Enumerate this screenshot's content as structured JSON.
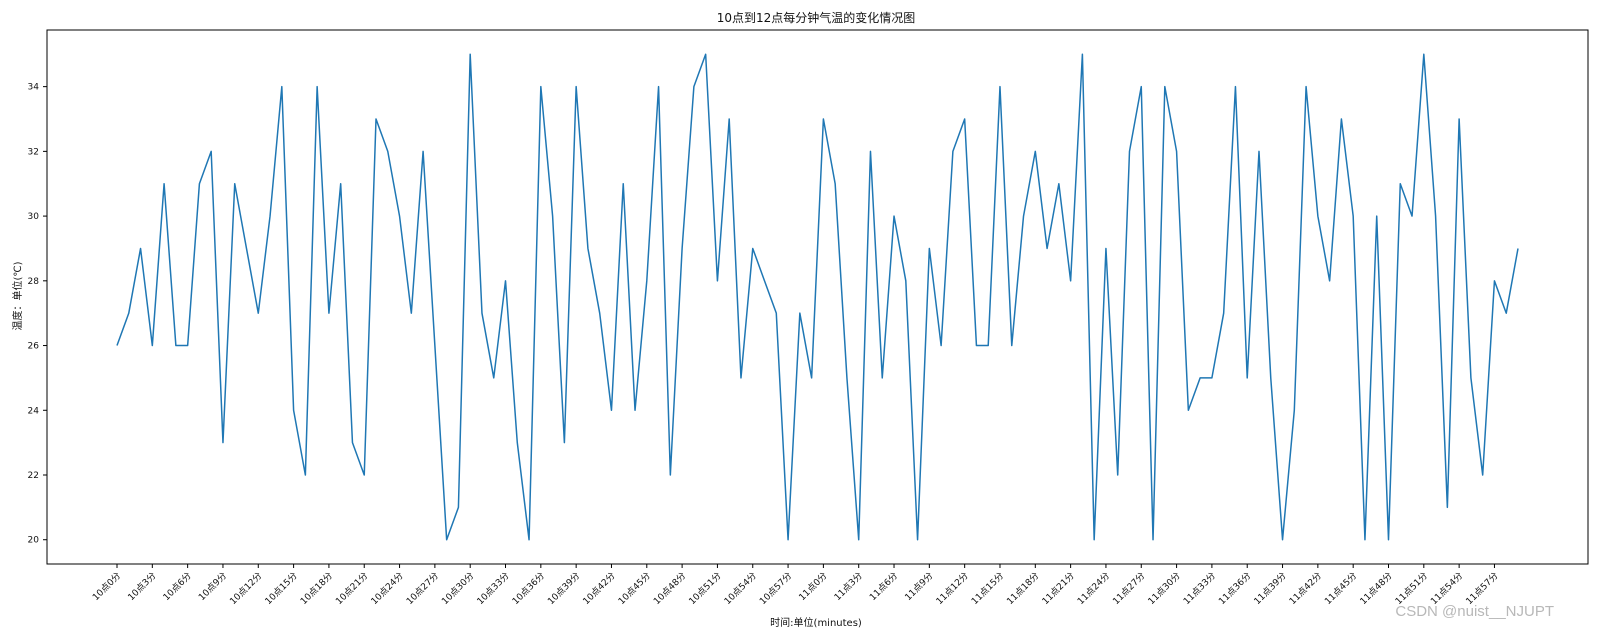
{
  "chart_data": {
    "type": "line",
    "title": "10点到12点每分钟气温的变化情况图",
    "xlabel": "时间:单位(minutes)",
    "ylabel": "温度：单位(℃)",
    "ylim": [
      19.25,
      35.75
    ],
    "yticks": [
      20,
      22,
      24,
      26,
      28,
      30,
      32,
      34
    ],
    "xtick_step": 3,
    "xtick_labels": [
      "10点0分",
      "10点3分",
      "10点6分",
      "10点9分",
      "10点12分",
      "10点15分",
      "10点18分",
      "10点21分",
      "10点24分",
      "10点27分",
      "10点30分",
      "10点33分",
      "10点36分",
      "10点39分",
      "10点42分",
      "10点45分",
      "10点48分",
      "10点51分",
      "10点54分",
      "10点57分",
      "11点0分",
      "11点3分",
      "11点6分",
      "11点9分",
      "11点12分",
      "11点15分",
      "11点18分",
      "11点21分",
      "11点24分",
      "11点27分",
      "11点30分",
      "11点33分",
      "11点36分",
      "11点39分",
      "11点42分",
      "11点45分",
      "11点48分",
      "11点51分",
      "11点54分",
      "11点57分"
    ],
    "grid": false,
    "series": [
      {
        "color": "#1f77b4",
        "values": [
          26,
          27,
          29,
          26,
          31,
          26,
          26,
          31,
          32,
          23,
          31,
          29,
          27,
          30,
          34,
          24,
          22,
          34,
          27,
          31,
          23,
          22,
          33,
          32,
          30,
          27,
          32,
          26,
          20,
          21,
          35,
          27,
          25,
          28,
          23,
          20,
          34,
          30,
          23,
          34,
          29,
          27,
          24,
          31,
          24,
          28,
          34,
          22,
          29,
          34,
          35,
          28,
          33,
          25,
          29,
          28,
          27,
          20,
          27,
          25,
          33,
          31,
          25,
          20,
          32,
          25,
          30,
          28,
          20,
          29,
          26,
          32,
          33,
          26,
          26,
          34,
          26,
          30,
          32,
          29,
          31,
          28,
          35,
          20,
          29,
          22,
          32,
          34,
          20,
          34,
          32,
          24,
          25,
          25,
          27,
          34,
          25,
          32,
          25,
          20,
          24,
          34,
          30,
          28,
          33,
          30,
          20,
          30,
          20,
          31,
          30,
          35,
          30,
          21,
          33,
          25,
          22,
          28,
          27,
          29
        ]
      }
    ]
  },
  "watermark": "CSDN @nuist__NJUPT"
}
